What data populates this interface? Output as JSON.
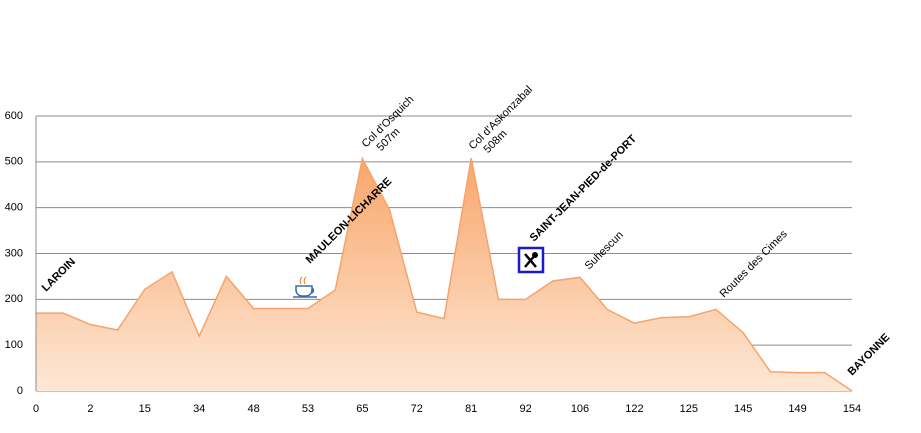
{
  "chart_data": {
    "type": "area",
    "categories": [
      "0",
      null,
      "2",
      null,
      "15",
      null,
      "34",
      null,
      "48",
      null,
      "53",
      null,
      "65",
      null,
      "72",
      null,
      "81",
      null,
      "92",
      null,
      "106",
      null,
      "122",
      null,
      "125",
      null,
      "145",
      null,
      "149",
      null,
      "154"
    ],
    "values": [
      170,
      170,
      145,
      133,
      222,
      260,
      120,
      250,
      180,
      180,
      180,
      220,
      507,
      395,
      172,
      158,
      508,
      200,
      200,
      240,
      248,
      178,
      148,
      160,
      162,
      178,
      127,
      42,
      40,
      40,
      0
    ],
    "color": "#f4a46c",
    "ylim": [
      0,
      600
    ],
    "yticks": [
      0,
      100,
      200,
      300,
      400,
      500,
      600
    ],
    "grid": true,
    "annotations": [
      {
        "lines": [
          "LAROIN"
        ]
      },
      {
        "lines": [
          "MAULEON-LICHARRE"
        ]
      },
      {
        "lines": [
          "Col d'Osquich",
          "507m"
        ]
      },
      {
        "lines": [
          "Col d'Askonzabal",
          "508m"
        ]
      },
      {
        "lines": [
          "SAINT-JEAN-PIED-de-PORT"
        ]
      },
      {
        "lines": [
          "Suhescun"
        ]
      },
      {
        "lines": [
          "Routes des Cimes"
        ]
      },
      {
        "lines": [
          "BAYONNE"
        ]
      }
    ]
  }
}
